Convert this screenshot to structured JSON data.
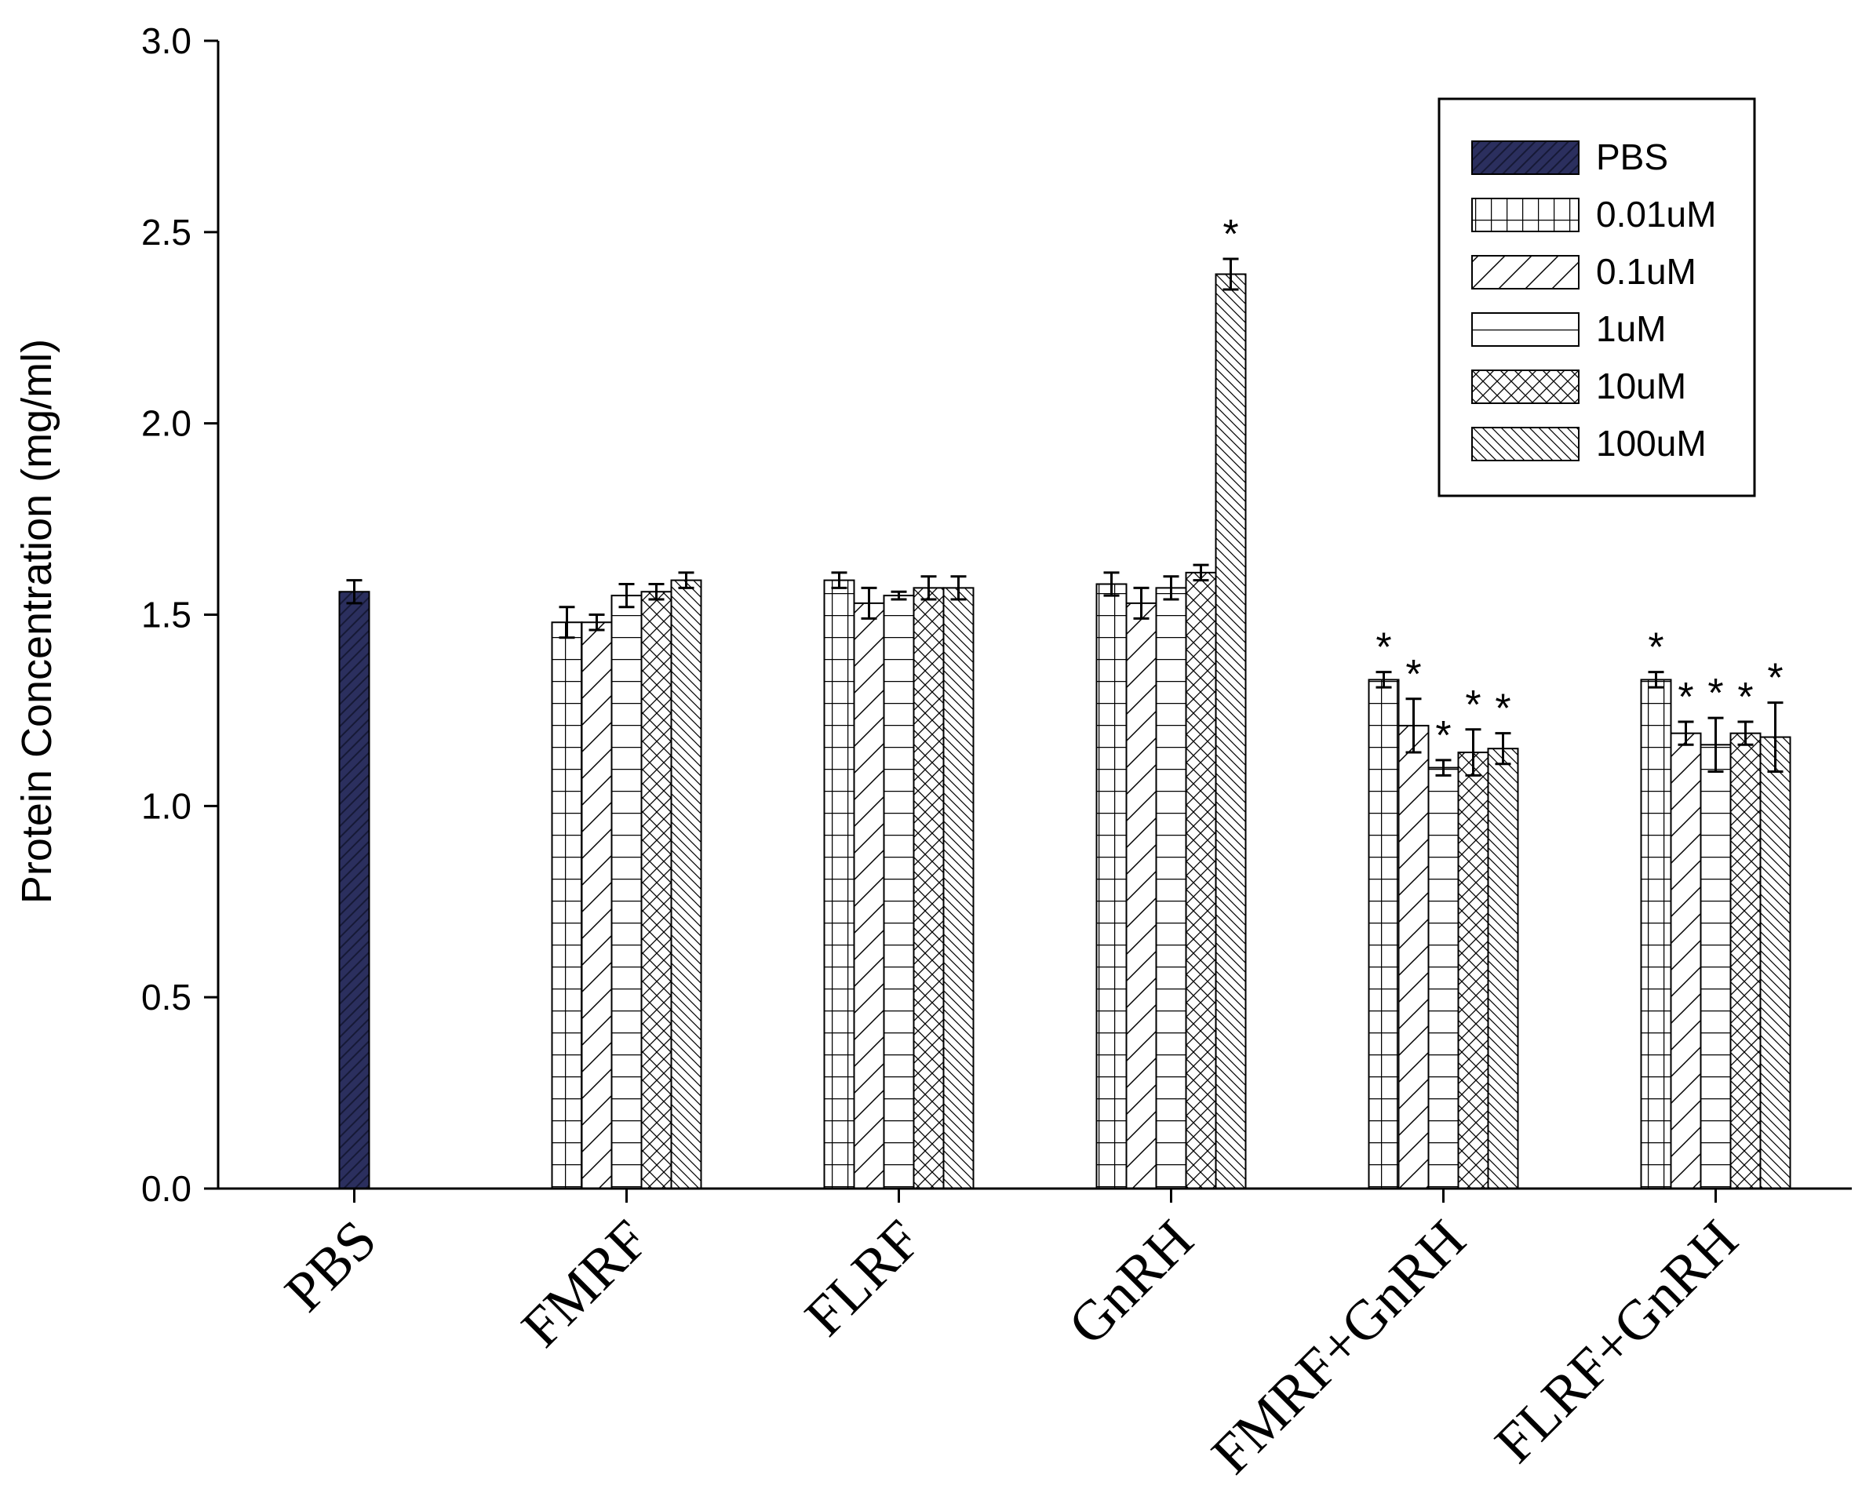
{
  "chart_data": {
    "type": "bar",
    "title": "",
    "xlabel": "",
    "ylabel": "Protein Concentration (mg/ml)",
    "ylim": [
      0,
      3.0
    ],
    "yticks": [
      "0.0",
      "0.5",
      "1.0",
      "1.5",
      "2.0",
      "2.5",
      "3.0"
    ],
    "grid": false,
    "legend_position": "top-right",
    "categories": [
      "PBS",
      "FMRF",
      "FLRF",
      "GnRH",
      "FMRF+GnRH",
      "FLRF+GnRH"
    ],
    "control": {
      "name": "PBS",
      "value": 1.56,
      "error": 0.03,
      "color": "#2b2f5e"
    },
    "series": [
      {
        "name": "0.01uM",
        "pattern": "grid",
        "values": [
          null,
          1.48,
          1.59,
          1.58,
          1.33,
          1.33
        ],
        "errors": [
          null,
          0.04,
          0.02,
          0.03,
          0.02,
          0.02
        ],
        "significant": [
          false,
          false,
          false,
          false,
          true,
          true
        ]
      },
      {
        "name": "0.1uM",
        "pattern": "diag-up",
        "values": [
          null,
          1.48,
          1.53,
          1.53,
          1.21,
          1.19
        ],
        "errors": [
          null,
          0.02,
          0.04,
          0.04,
          0.07,
          0.03
        ],
        "significant": [
          false,
          false,
          false,
          false,
          true,
          true
        ]
      },
      {
        "name": "1uM",
        "pattern": "horizontal",
        "values": [
          null,
          1.55,
          1.55,
          1.57,
          1.1,
          1.16
        ],
        "errors": [
          null,
          0.03,
          0.01,
          0.03,
          0.02,
          0.07
        ],
        "significant": [
          false,
          false,
          false,
          false,
          true,
          true
        ]
      },
      {
        "name": "10uM",
        "pattern": "crosshatch",
        "values": [
          null,
          1.56,
          1.57,
          1.61,
          1.14,
          1.19
        ],
        "errors": [
          null,
          0.02,
          0.03,
          0.02,
          0.06,
          0.03
        ],
        "significant": [
          false,
          false,
          false,
          false,
          true,
          true
        ]
      },
      {
        "name": "100uM",
        "pattern": "diag-down",
        "values": [
          null,
          1.59,
          1.57,
          2.39,
          1.15,
          1.18
        ],
        "errors": [
          null,
          0.02,
          0.03,
          0.04,
          0.04,
          0.09
        ],
        "significant": [
          false,
          false,
          false,
          true,
          true,
          true
        ]
      }
    ],
    "significance_marker": "*"
  }
}
